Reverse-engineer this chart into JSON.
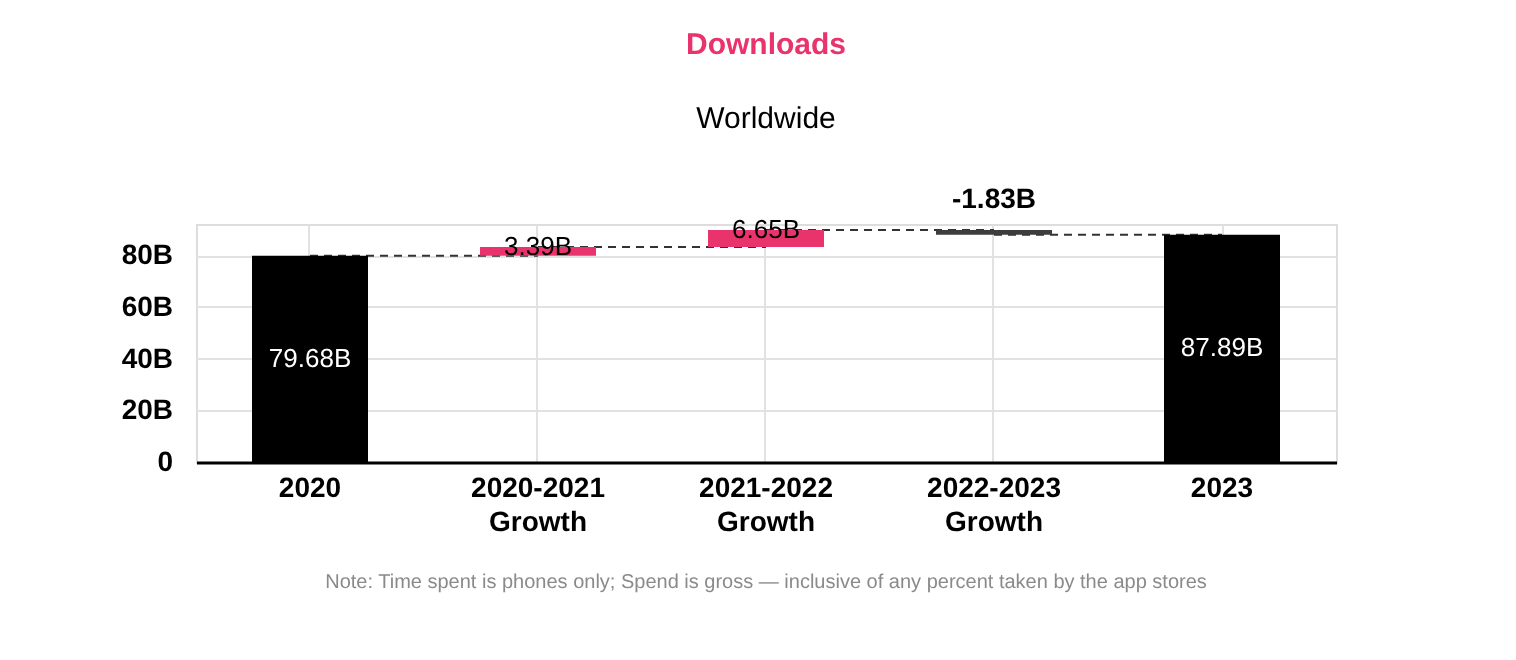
{
  "chart_data": {
    "type": "bar",
    "title": "Downloads",
    "subtitle": "Worldwide",
    "categories": [
      "2020",
      "2020-2021 Growth",
      "2021-2022 Growth",
      "2022-2023 Growth",
      "2023"
    ],
    "values": [
      79.68,
      3.39,
      6.65,
      -1.83,
      87.89
    ],
    "base": [
      0,
      79.68,
      83.07,
      89.72,
      0
    ],
    "colors": [
      "#000000",
      "#e8336d",
      "#e8336d",
      "#3d3d3d",
      "#000000"
    ],
    "value_labels": [
      "79.68B",
      "3.39B",
      "6.65B",
      null,
      "87.89B"
    ],
    "ylim": [
      0,
      92
    ],
    "yticks": [
      {
        "value": 0,
        "label": "0"
      },
      {
        "value": 20,
        "label": "20B"
      },
      {
        "value": 40,
        "label": "40B"
      },
      {
        "value": 60,
        "label": "60B"
      },
      {
        "value": 80,
        "label": "80B"
      }
    ],
    "grid": true,
    "legend": false,
    "annotations": [
      {
        "text": "-1.83B",
        "x": "2022-2023 Growth",
        "y": 89.72
      },
      "Note: Time spent is phones only; Spend is gross — inclusive of any percent taken by the app stores"
    ]
  }
}
